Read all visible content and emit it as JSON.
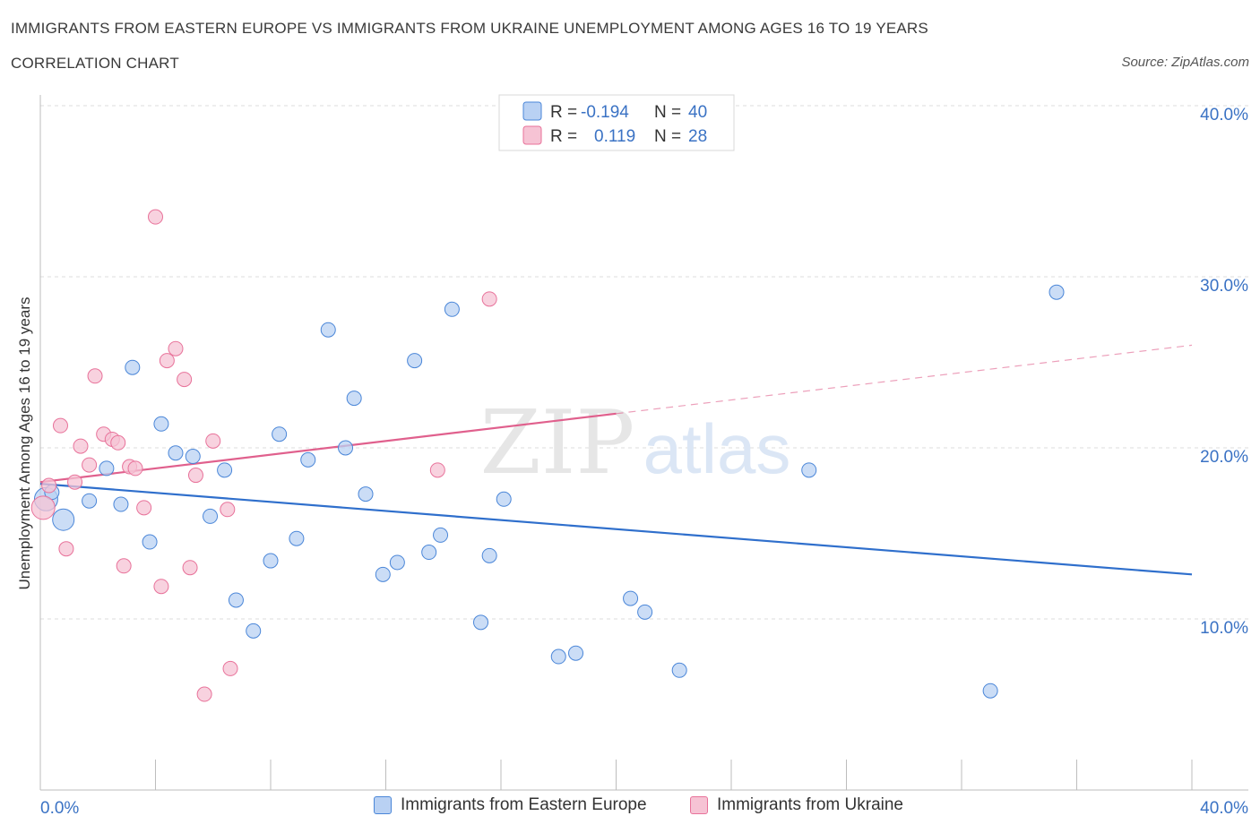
{
  "header": {
    "title": "IMMIGRANTS FROM EASTERN EUROPE VS IMMIGRANTS FROM UKRAINE UNEMPLOYMENT AMONG AGES 16 TO 19 YEARS",
    "subtitle": "CORRELATION CHART",
    "source": "Source: ZipAtlas.com"
  },
  "watermark": {
    "zip": "ZIP",
    "atlas": "atlas"
  },
  "colors": {
    "blue": "#4a86d8",
    "blue_fill": "#b9d1f3",
    "blue_line": "#2f6fcc",
    "pink": "#e8729a",
    "pink_fill": "#f6c3d4",
    "pink_line": "#e0608d",
    "axis_text": "#3a72c4",
    "grid": "#dcdcdc"
  },
  "legend_top": {
    "rows": [
      {
        "r_label": "R = ",
        "r_value": "-0.194",
        "n_label": "N = ",
        "n_value": "40"
      },
      {
        "r_label": "R = ",
        "r_value": "0.119",
        "n_label": "N = ",
        "n_value": "28"
      }
    ]
  },
  "legend_bottom": {
    "series1": "Immigrants from Eastern Europe",
    "series2": "Immigrants from Ukraine"
  },
  "chart_data": {
    "type": "scatter",
    "title": "IMMIGRANTS FROM EASTERN EUROPE VS IMMIGRANTS FROM UKRAINE UNEMPLOYMENT AMONG AGES 16 TO 19 YEARS",
    "xlabel": "",
    "ylabel": "Unemployment Among Ages 16 to 19 years",
    "xlim": [
      0,
      40
    ],
    "ylim": [
      0,
      40
    ],
    "x_tick_labels": [
      "0.0%",
      "40.0%"
    ],
    "y_tick_labels": [
      "10.0%",
      "20.0%",
      "30.0%",
      "40.0%"
    ],
    "y_ticks": [
      10,
      20,
      30,
      40
    ],
    "series": [
      {
        "name": "Immigrants from Eastern Europe",
        "points": [
          [
            0.2,
            17.0
          ],
          [
            0.8,
            15.8
          ],
          [
            1.7,
            16.9
          ],
          [
            2.3,
            18.8
          ],
          [
            2.8,
            16.7
          ],
          [
            3.2,
            24.7
          ],
          [
            3.8,
            14.5
          ],
          [
            4.2,
            21.4
          ],
          [
            4.7,
            19.7
          ],
          [
            5.3,
            19.5
          ],
          [
            5.9,
            16.0
          ],
          [
            6.4,
            18.7
          ],
          [
            6.8,
            11.1
          ],
          [
            7.4,
            9.3
          ],
          [
            8.0,
            13.4
          ],
          [
            8.3,
            20.8
          ],
          [
            8.9,
            14.7
          ],
          [
            9.3,
            19.3
          ],
          [
            10.0,
            26.9
          ],
          [
            10.6,
            20.0
          ],
          [
            10.9,
            22.9
          ],
          [
            11.3,
            17.3
          ],
          [
            11.9,
            12.6
          ],
          [
            12.4,
            13.3
          ],
          [
            13.0,
            25.1
          ],
          [
            13.5,
            13.9
          ],
          [
            13.9,
            14.9
          ],
          [
            14.3,
            28.1
          ],
          [
            15.3,
            9.8
          ],
          [
            15.6,
            13.7
          ],
          [
            16.1,
            17.0
          ],
          [
            18.0,
            7.8
          ],
          [
            18.6,
            8.0
          ],
          [
            20.5,
            11.2
          ],
          [
            21.0,
            10.4
          ],
          [
            22.2,
            7.0
          ],
          [
            26.7,
            18.7
          ],
          [
            33.0,
            5.8
          ],
          [
            35.3,
            29.1
          ],
          [
            0.4,
            17.4
          ]
        ]
      },
      {
        "name": "Immigrants from Ukraine",
        "points": [
          [
            0.1,
            16.5
          ],
          [
            0.3,
            17.8
          ],
          [
            0.7,
            21.3
          ],
          [
            0.9,
            14.1
          ],
          [
            1.2,
            18.0
          ],
          [
            1.4,
            20.1
          ],
          [
            1.7,
            19.0
          ],
          [
            1.9,
            24.2
          ],
          [
            2.2,
            20.8
          ],
          [
            2.5,
            20.5
          ],
          [
            2.7,
            20.3
          ],
          [
            2.9,
            13.1
          ],
          [
            3.1,
            18.9
          ],
          [
            3.3,
            18.8
          ],
          [
            3.6,
            16.5
          ],
          [
            4.0,
            33.5
          ],
          [
            4.2,
            11.9
          ],
          [
            4.4,
            25.1
          ],
          [
            4.7,
            25.8
          ],
          [
            5.0,
            24.0
          ],
          [
            5.2,
            13.0
          ],
          [
            5.4,
            18.4
          ],
          [
            5.7,
            5.6
          ],
          [
            6.0,
            20.4
          ],
          [
            6.5,
            16.4
          ],
          [
            6.6,
            7.1
          ],
          [
            13.8,
            18.7
          ],
          [
            15.6,
            28.7
          ]
        ]
      }
    ],
    "trend_lines": [
      {
        "name": "Immigrants from Eastern Europe",
        "x": [
          0,
          40
        ],
        "y": [
          17.9,
          12.6
        ],
        "style": "solid"
      },
      {
        "name": "Immigrants from Ukraine",
        "x": [
          0,
          20
        ],
        "y": [
          18.0,
          22.0
        ],
        "style": "solid",
        "extension": {
          "x": [
            20,
            40
          ],
          "y": [
            22.0,
            26.0
          ],
          "style": "dashed"
        }
      }
    ],
    "stats": [
      {
        "name": "Immigrants from Eastern Europe",
        "R": -0.194,
        "N": 40
      },
      {
        "name": "Immigrants from Ukraine",
        "R": 0.119,
        "N": 28
      }
    ],
    "grid": true,
    "legend": "top-center"
  }
}
